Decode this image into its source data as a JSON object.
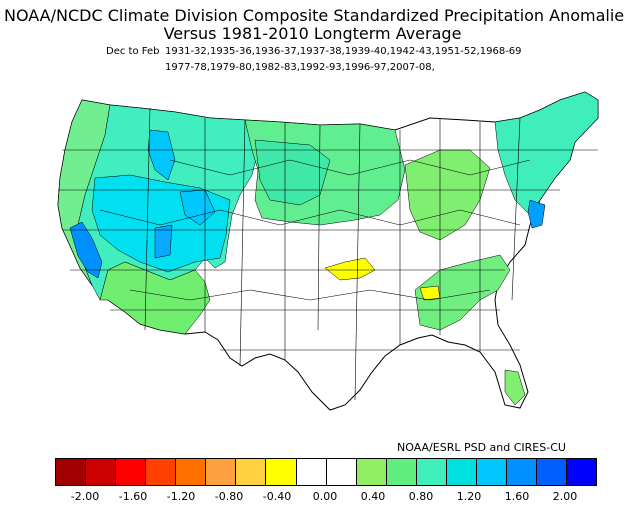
{
  "header": {
    "title_line1": "NOAA/NCDC Climate Division Composite Standardized Precipitation Anomalies",
    "title_line2": "Versus 1981-2010 Longterm Average",
    "season": "Dec to Feb",
    "years_line1": "1931-32,1935-36,1936-37,1937-38,1939-40,1942-43,1951-52,1968-69",
    "years_line2": "1977-78,1979-80,1982-83,1992-93,1996-97,2007-08,"
  },
  "credit": "NOAA/ESRL PSD and CIRES-CU",
  "legend": {
    "colors": [
      "#a00000",
      "#cc0000",
      "#ff0000",
      "#ff4000",
      "#ff7000",
      "#ffa040",
      "#ffd040",
      "#ffff00",
      "#ffffff",
      "#ffffff",
      "#90ee60",
      "#60ee80",
      "#40eebb",
      "#00e0e0",
      "#00c8ff",
      "#0090ff",
      "#0060ff",
      "#0000ff"
    ],
    "ticks": [
      "-2.00",
      "-1.60",
      "-1.20",
      "-0.80",
      "-0.40",
      "0.00",
      "0.40",
      "0.80",
      "1.20",
      "1.60",
      "2.00"
    ]
  },
  "map": {
    "region": "Contiguous United States climate divisions",
    "dominant_wet_region": "West and northern tier",
    "dry_region": "South-central (Oklahoma/Texas) and Mississippi"
  }
}
